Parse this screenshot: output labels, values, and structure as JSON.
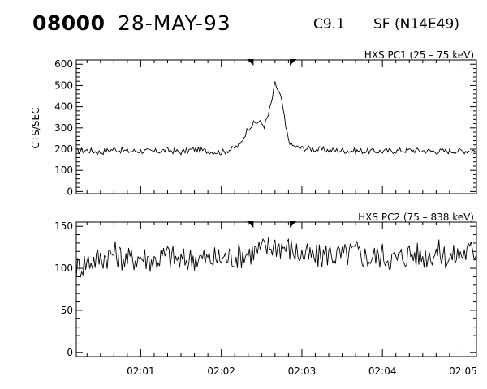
{
  "header": {
    "event_id": "08000",
    "date": "28-MAY-93",
    "goes_class": "C9.1",
    "flare": "SF (N14E49)"
  },
  "chart_data": [
    {
      "type": "line",
      "title": "HXS PC1 (25 – 75 keV)",
      "ylabel": "CTS/SEC",
      "xlabel": "",
      "xlim": [
        "02:00:12",
        "02:05:10"
      ],
      "ylim": [
        -10,
        620
      ],
      "yticks": [
        0,
        100,
        200,
        300,
        400,
        500,
        600
      ],
      "xticks": [
        "02:01",
        "02:02",
        "02:03",
        "02:04",
        "02:05"
      ],
      "markers": [
        "02:02:24",
        "02:02:51"
      ],
      "series": [
        {
          "x": [
            "02:00:12",
            "02:00:20",
            "02:00:30",
            "02:00:40",
            "02:00:50",
            "02:01:00",
            "02:01:10",
            "02:01:20",
            "02:01:30",
            "02:01:40",
            "02:01:50",
            "02:02:00",
            "02:02:08",
            "02:02:14",
            "02:02:20",
            "02:02:24",
            "02:02:28",
            "02:02:32",
            "02:02:35",
            "02:02:38",
            "02:02:40",
            "02:02:42",
            "02:02:44",
            "02:02:46",
            "02:02:48",
            "02:02:50",
            "02:02:52",
            "02:02:55",
            "02:03:00",
            "02:03:10",
            "02:03:20",
            "02:03:40",
            "02:04:00",
            "02:04:20",
            "02:04:40",
            "02:05:00",
            "02:05:10"
          ],
          "y": [
            190,
            195,
            185,
            200,
            190,
            192,
            188,
            196,
            186,
            200,
            190,
            185,
            200,
            220,
            300,
            320,
            330,
            310,
            360,
            440,
            510,
            480,
            450,
            390,
            300,
            250,
            220,
            210,
            205,
            200,
            195,
            192,
            190,
            195,
            190,
            192,
            195
          ]
        }
      ]
    },
    {
      "type": "line",
      "title": "HXS PC2 (75 – 838 keV)",
      "ylabel": "",
      "xlabel": "",
      "xlim": [
        "02:00:12",
        "02:05:10"
      ],
      "ylim": [
        -5,
        155
      ],
      "yticks": [
        0,
        50,
        100,
        150
      ],
      "xticks": [
        "02:01",
        "02:02",
        "02:03",
        "02:04",
        "02:05"
      ],
      "markers": [
        "02:02:24",
        "02:02:51"
      ],
      "series": [
        {
          "x": [
            "02:00:12",
            "02:00:20",
            "02:00:30",
            "02:00:40",
            "02:00:50",
            "02:01:00",
            "02:01:10",
            "02:01:20",
            "02:01:30",
            "02:01:40",
            "02:01:50",
            "02:02:00",
            "02:02:10",
            "02:02:20",
            "02:02:30",
            "02:02:40",
            "02:02:50",
            "02:03:00",
            "02:03:10",
            "02:03:20",
            "02:03:30",
            "02:03:40",
            "02:03:50",
            "02:04:00",
            "02:04:10",
            "02:04:20",
            "02:04:30",
            "02:04:40",
            "02:04:50",
            "02:05:00",
            "02:05:10"
          ],
          "y": [
            100,
            108,
            112,
            118,
            110,
            114,
            109,
            116,
            108,
            113,
            110,
            112,
            114,
            118,
            122,
            128,
            124,
            116,
            112,
            118,
            114,
            120,
            112,
            116,
            110,
            118,
            114,
            120,
            112,
            118,
            122
          ]
        }
      ]
    }
  ]
}
